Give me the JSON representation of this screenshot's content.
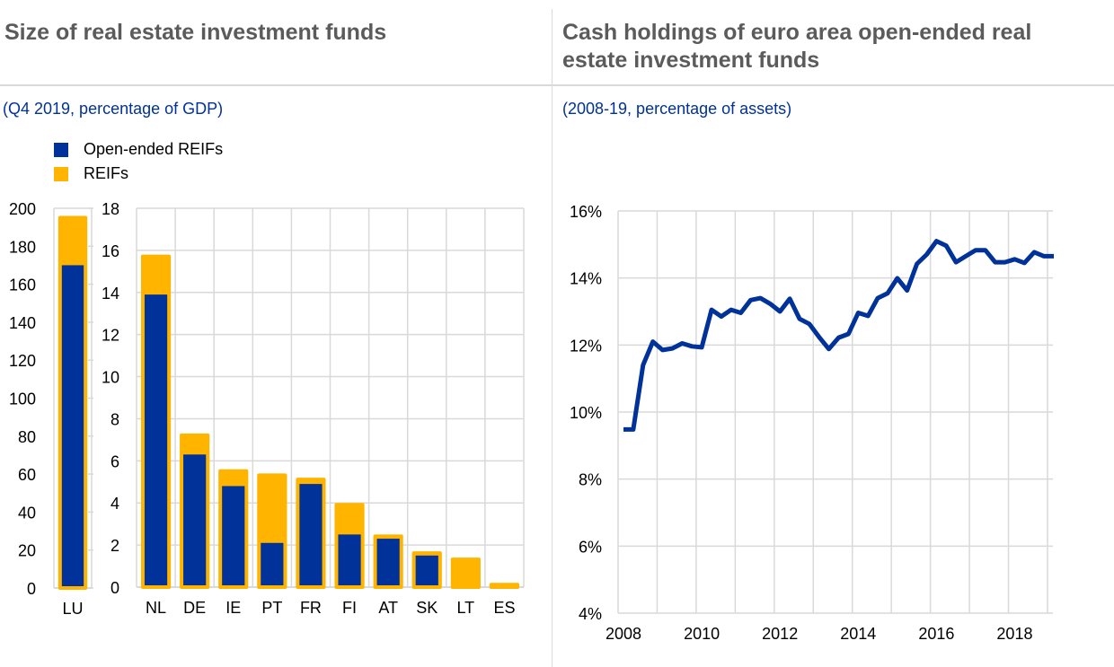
{
  "colors": {
    "open_ended": "#003299",
    "reifs": "#ffb400",
    "grid": "#d9d9d9",
    "title": "#5b5b5b"
  },
  "left_panel": {
    "title": "Size of real estate investment funds",
    "subtitle": "(Q4 2019, percentage of GDP)",
    "legend": [
      "Open-ended REIFs",
      "REIFs"
    ]
  },
  "right_panel": {
    "title_line1": "Cash holdings of euro area open-ended real",
    "title_line2": "estate investment funds",
    "subtitle": "(2008-19, percentage of assets)"
  },
  "chart_data": [
    {
      "type": "bar",
      "title": "Size of real estate investment funds - LU",
      "categories": [
        "LU"
      ],
      "series": [
        {
          "name": "Open-ended REIFs",
          "values": [
            170
          ]
        },
        {
          "name": "REIFs",
          "values": [
            196
          ]
        }
      ],
      "ylim": [
        0,
        200
      ],
      "yticks": [
        "0",
        "20",
        "40",
        "60",
        "80",
        "100",
        "120",
        "140",
        "160",
        "180",
        "200"
      ]
    },
    {
      "type": "bar",
      "title": "Size of real estate investment funds - other countries",
      "categories": [
        "NL",
        "DE",
        "IE",
        "PT",
        "FR",
        "FI",
        "AT",
        "SK",
        "LT",
        "ES"
      ],
      "series": [
        {
          "name": "Open-ended REIFs",
          "values": [
            13.9,
            6.3,
            4.8,
            2.1,
            4.9,
            2.5,
            2.3,
            1.5,
            0,
            0
          ]
        },
        {
          "name": "REIFs",
          "values": [
            15.8,
            7.3,
            5.6,
            5.4,
            5.2,
            4.0,
            2.5,
            1.7,
            1.4,
            0.2
          ]
        }
      ],
      "ylim": [
        0,
        18
      ],
      "yticks": [
        "0",
        "2",
        "4",
        "6",
        "8",
        "10",
        "12",
        "14",
        "16",
        "18"
      ],
      "grid": true
    },
    {
      "type": "line",
      "title": "Cash holdings of euro area open-ended real estate investment funds",
      "series": [
        {
          "name": "Cash holdings",
          "start": 2008.0,
          "step": 0.25,
          "values": [
            9.48,
            9.48,
            11.4,
            12.1,
            11.85,
            11.9,
            12.05,
            11.96,
            11.93,
            13.05,
            12.85,
            13.05,
            12.96,
            13.34,
            13.4,
            13.23,
            13.0,
            13.38,
            12.78,
            12.63,
            12.24,
            11.88,
            12.22,
            12.33,
            12.96,
            12.87,
            13.4,
            13.54,
            13.99,
            13.63,
            14.42,
            14.7,
            15.1,
            14.96,
            14.47,
            14.65,
            14.83,
            14.83,
            14.47,
            14.47,
            14.56,
            14.45,
            14.77,
            14.65,
            14.65
          ]
        }
      ],
      "xlim": [
        2008.0,
        2019.0
      ],
      "ylim": [
        4,
        16
      ],
      "yticks": [
        "4%",
        "6%",
        "8%",
        "10%",
        "12%",
        "14%",
        "16%"
      ],
      "xticks": [
        "2008",
        "2010",
        "2012",
        "2014",
        "2016",
        "2018"
      ],
      "grid": true
    }
  ]
}
